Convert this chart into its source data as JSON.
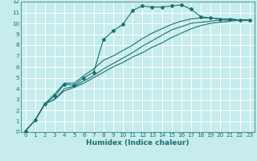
{
  "xlabel": "Humidex (Indice chaleur)",
  "xlim": [
    -0.5,
    23.5
  ],
  "ylim": [
    0,
    12
  ],
  "xticks": [
    0,
    1,
    2,
    3,
    4,
    5,
    6,
    7,
    8,
    9,
    10,
    11,
    12,
    13,
    14,
    15,
    16,
    17,
    18,
    19,
    20,
    21,
    22,
    23
  ],
  "yticks": [
    0,
    1,
    2,
    3,
    4,
    5,
    6,
    7,
    8,
    9,
    10,
    11,
    12
  ],
  "bg_color": "#c6ecec",
  "grid_color": "#ffffff",
  "line_color": "#1a7070",
  "lines": [
    {
      "x": [
        0,
        1,
        2,
        3,
        4,
        5,
        6,
        7,
        8,
        9,
        10,
        11,
        12,
        13,
        14,
        15,
        16,
        17,
        18,
        19,
        20,
        21,
        22,
        23
      ],
      "y": [
        0.1,
        1.1,
        2.6,
        3.3,
        4.4,
        4.3,
        5.0,
        5.5,
        8.5,
        9.3,
        9.9,
        11.2,
        11.6,
        11.5,
        11.5,
        11.6,
        11.7,
        11.3,
        10.6,
        10.5,
        10.4,
        10.4,
        10.3,
        10.3
      ],
      "marker": "D",
      "markersize": 2.0
    },
    {
      "x": [
        0,
        1,
        2,
        3,
        4,
        5,
        6,
        7,
        8,
        9,
        10,
        11,
        12,
        13,
        14,
        15,
        16,
        17,
        18,
        19,
        20,
        21,
        22,
        23
      ],
      "y": [
        0.1,
        1.1,
        2.6,
        3.0,
        4.0,
        4.2,
        4.7,
        5.2,
        5.8,
        6.3,
        6.8,
        7.3,
        7.9,
        8.4,
        8.9,
        9.4,
        9.7,
        10.0,
        10.1,
        10.2,
        10.3,
        10.3,
        10.3,
        10.3
      ],
      "marker": null,
      "markersize": 0
    },
    {
      "x": [
        0,
        1,
        2,
        3,
        4,
        5,
        6,
        7,
        8,
        9,
        10,
        11,
        12,
        13,
        14,
        15,
        16,
        17,
        18,
        19,
        20,
        21,
        22,
        23
      ],
      "y": [
        0.1,
        1.1,
        2.6,
        3.0,
        3.8,
        4.1,
        4.5,
        5.0,
        5.5,
        6.0,
        6.4,
        6.9,
        7.3,
        7.8,
        8.2,
        8.7,
        9.1,
        9.5,
        9.8,
        10.0,
        10.1,
        10.2,
        10.3,
        10.3
      ],
      "marker": null,
      "markersize": 0
    },
    {
      "x": [
        0,
        1,
        2,
        3,
        4,
        5,
        6,
        7,
        8,
        9,
        10,
        11,
        12,
        13,
        14,
        15,
        16,
        17,
        18,
        19,
        20,
        21,
        22,
        23
      ],
      "y": [
        0.1,
        1.1,
        2.6,
        3.5,
        4.5,
        4.5,
        5.2,
        5.8,
        6.6,
        7.0,
        7.5,
        8.0,
        8.6,
        9.1,
        9.5,
        9.9,
        10.2,
        10.4,
        10.5,
        10.5,
        10.4,
        10.4,
        10.3,
        10.3
      ],
      "marker": null,
      "markersize": 0
    }
  ],
  "font_color": "#1a7070",
  "tick_fontsize": 5.2,
  "xlabel_fontsize": 6.5
}
